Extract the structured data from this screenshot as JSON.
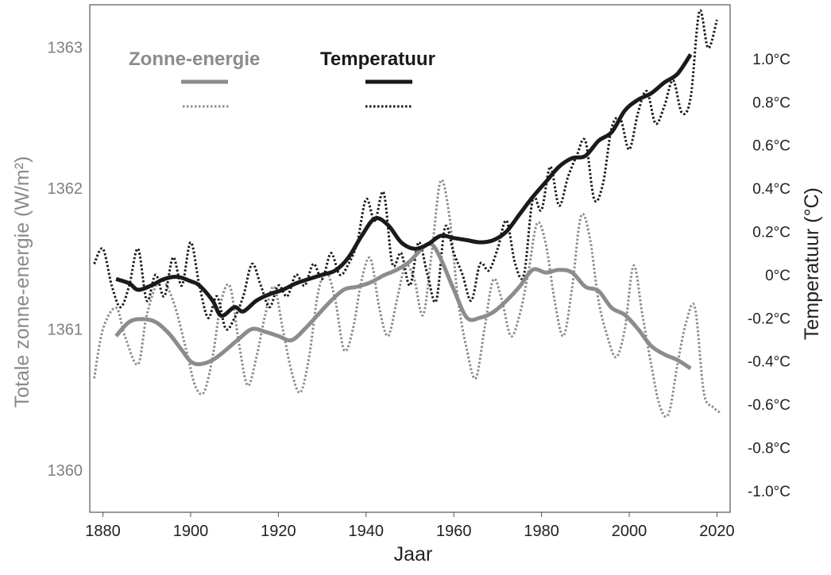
{
  "chart_data": {
    "type": "line",
    "xlabel": "Jaar",
    "ylabel_left": "Totale zonne-energie (W/m²)",
    "ylabel_right": "Temperatuur (°C)",
    "xlim": [
      1877,
      2023
    ],
    "ylim_left": [
      1359.7,
      1363.3
    ],
    "ylim_right": [
      -1.1,
      1.25
    ],
    "x_ticks": [
      1880,
      1900,
      1920,
      1940,
      1960,
      1980,
      2000,
      2020
    ],
    "x_tick_labels": [
      "1880",
      "1900",
      "1920",
      "1940",
      "1960",
      "1980",
      "2000",
      "2020"
    ],
    "y_ticks_left": [
      1360,
      1361,
      1362,
      1363
    ],
    "y_tick_labels_left": [
      "1360",
      "1361",
      "1362",
      "1363"
    ],
    "y_ticks_right": [
      -1.0,
      -0.8,
      -0.6,
      -0.4,
      -0.2,
      0.0,
      0.2,
      0.4,
      0.6,
      0.8,
      1.0
    ],
    "y_tick_labels_right": [
      "-1.0°C",
      "-0.8°C",
      "-0.6°C",
      "-0.4°C",
      "-0.2°C",
      "0°C",
      "0.2°C",
      "0.4°C",
      "0.6°C",
      "0.8°C",
      "1.0°C"
    ],
    "legend": {
      "solar_title": "Zonne-energie",
      "temperature_title": "Temperatuur",
      "placement": "top-left"
    },
    "colors": {
      "solar": "#8c8c8c",
      "temperature": "#1a1a1a",
      "frame": "#555555"
    },
    "series": [
      {
        "name": "Zonne-energie (jaarlijks)",
        "axis": "left",
        "style": "dotted",
        "x": [
          1878,
          1880,
          1883,
          1885,
          1888,
          1890,
          1893,
          1896,
          1899,
          1901,
          1903,
          1905,
          1907,
          1909,
          1911,
          1913,
          1915,
          1917,
          1919,
          1921,
          1923,
          1925,
          1927,
          1929,
          1931,
          1933,
          1935,
          1937,
          1939,
          1941,
          1943,
          1945,
          1947,
          1949,
          1951,
          1953,
          1955,
          1957,
          1959,
          1961,
          1963,
          1965,
          1967,
          1969,
          1971,
          1973,
          1975,
          1977,
          1979,
          1981,
          1983,
          1985,
          1987,
          1989,
          1991,
          1993,
          1995,
          1997,
          1999,
          2001,
          2003,
          2005,
          2007,
          2009,
          2011,
          2013,
          2015,
          2017,
          2019,
          2021
        ],
        "values": [
          1360.65,
          1361.0,
          1361.15,
          1360.95,
          1360.75,
          1361.1,
          1361.35,
          1361.2,
          1360.85,
          1360.6,
          1360.55,
          1360.8,
          1361.2,
          1361.3,
          1360.9,
          1360.6,
          1360.8,
          1361.1,
          1361.3,
          1361.0,
          1360.7,
          1360.55,
          1360.8,
          1361.25,
          1361.4,
          1361.2,
          1360.85,
          1361.0,
          1361.35,
          1361.5,
          1361.15,
          1360.95,
          1361.2,
          1361.45,
          1361.35,
          1361.1,
          1361.55,
          1362.05,
          1361.8,
          1361.2,
          1360.85,
          1360.65,
          1361.0,
          1361.35,
          1361.2,
          1360.95,
          1361.1,
          1361.4,
          1361.75,
          1361.6,
          1361.2,
          1360.95,
          1361.3,
          1361.8,
          1361.65,
          1361.2,
          1360.95,
          1360.8,
          1361.0,
          1361.45,
          1361.1,
          1360.75,
          1360.45,
          1360.4,
          1360.75,
          1361.05,
          1361.15,
          1360.55,
          1360.45,
          1360.4
        ]
      },
      {
        "name": "Zonne-energie (gemiddeld)",
        "axis": "left",
        "style": "solid",
        "x": [
          1883,
          1886,
          1889,
          1892,
          1895,
          1898,
          1900,
          1902,
          1905,
          1908,
          1911,
          1914,
          1917,
          1920,
          1923,
          1926,
          1929,
          1932,
          1935,
          1938,
          1941,
          1944,
          1947,
          1950,
          1953,
          1955,
          1957,
          1960,
          1963,
          1966,
          1969,
          1972,
          1975,
          1978,
          1981,
          1984,
          1987,
          1990,
          1993,
          1996,
          1999,
          2002,
          2005,
          2008,
          2011,
          2014
        ],
        "values": [
          1360.95,
          1361.05,
          1361.07,
          1361.05,
          1360.97,
          1360.85,
          1360.77,
          1360.75,
          1360.78,
          1360.85,
          1360.93,
          1361.0,
          1360.98,
          1360.95,
          1360.92,
          1361.0,
          1361.1,
          1361.2,
          1361.28,
          1361.3,
          1361.33,
          1361.38,
          1361.42,
          1361.48,
          1361.58,
          1361.6,
          1361.5,
          1361.28,
          1361.08,
          1361.08,
          1361.12,
          1361.2,
          1361.3,
          1361.42,
          1361.4,
          1361.42,
          1361.4,
          1361.3,
          1361.27,
          1361.15,
          1361.1,
          1361.0,
          1360.88,
          1360.82,
          1360.78,
          1360.72
        ]
      },
      {
        "name": "Temperatuur (jaarlijks)",
        "axis": "right",
        "style": "dotted",
        "x": [
          1878,
          1880,
          1882,
          1884,
          1886,
          1888,
          1890,
          1892,
          1894,
          1896,
          1898,
          1900,
          1902,
          1904,
          1906,
          1908,
          1910,
          1912,
          1914,
          1916,
          1918,
          1920,
          1922,
          1924,
          1926,
          1928,
          1930,
          1932,
          1934,
          1936,
          1938,
          1940,
          1942,
          1944,
          1946,
          1948,
          1950,
          1952,
          1954,
          1956,
          1958,
          1960,
          1962,
          1964,
          1966,
          1968,
          1970,
          1972,
          1974,
          1976,
          1978,
          1980,
          1982,
          1984,
          1986,
          1988,
          1990,
          1992,
          1994,
          1996,
          1998,
          2000,
          2002,
          2004,
          2006,
          2008,
          2010,
          2012,
          2014,
          2016,
          2018,
          2020
        ],
        "values": [
          0.05,
          0.12,
          -0.05,
          -0.15,
          -0.05,
          0.12,
          -0.12,
          0.0,
          -0.1,
          0.08,
          -0.05,
          0.15,
          -0.05,
          -0.2,
          -0.1,
          -0.25,
          -0.2,
          -0.1,
          0.05,
          -0.05,
          -0.15,
          -0.05,
          -0.1,
          0.0,
          -0.05,
          0.05,
          -0.02,
          0.1,
          0.0,
          0.05,
          0.15,
          0.35,
          0.25,
          0.38,
          0.05,
          0.1,
          -0.05,
          0.15,
          0.0,
          -0.12,
          0.22,
          0.1,
          0.0,
          -0.12,
          0.05,
          0.02,
          0.12,
          0.25,
          0.05,
          0.0,
          0.35,
          0.3,
          0.5,
          0.32,
          0.45,
          0.55,
          0.62,
          0.35,
          0.42,
          0.68,
          0.72,
          0.58,
          0.75,
          0.85,
          0.7,
          0.78,
          0.9,
          0.75,
          0.82,
          1.22,
          1.05,
          1.18
        ]
      },
      {
        "name": "Temperatuur (gemiddeld)",
        "axis": "right",
        "style": "solid",
        "x": [
          1883,
          1886,
          1888,
          1891,
          1894,
          1897,
          1900,
          1902,
          1905,
          1907,
          1910,
          1912,
          1915,
          1918,
          1921,
          1924,
          1927,
          1930,
          1933,
          1936,
          1939,
          1942,
          1945,
          1948,
          1951,
          1954,
          1957,
          1960,
          1963,
          1966,
          1969,
          1972,
          1975,
          1978,
          1981,
          1984,
          1987,
          1990,
          1993,
          1996,
          1999,
          2002,
          2005,
          2008,
          2011,
          2014
        ],
        "values": [
          -0.02,
          -0.04,
          -0.07,
          -0.05,
          -0.02,
          -0.01,
          -0.03,
          -0.05,
          -0.12,
          -0.19,
          -0.15,
          -0.17,
          -0.12,
          -0.09,
          -0.07,
          -0.04,
          -0.02,
          0.0,
          0.02,
          0.08,
          0.18,
          0.26,
          0.23,
          0.15,
          0.12,
          0.14,
          0.18,
          0.17,
          0.16,
          0.15,
          0.16,
          0.2,
          0.28,
          0.36,
          0.43,
          0.5,
          0.54,
          0.55,
          0.62,
          0.66,
          0.76,
          0.81,
          0.84,
          0.89,
          0.93,
          1.02
        ]
      }
    ]
  }
}
